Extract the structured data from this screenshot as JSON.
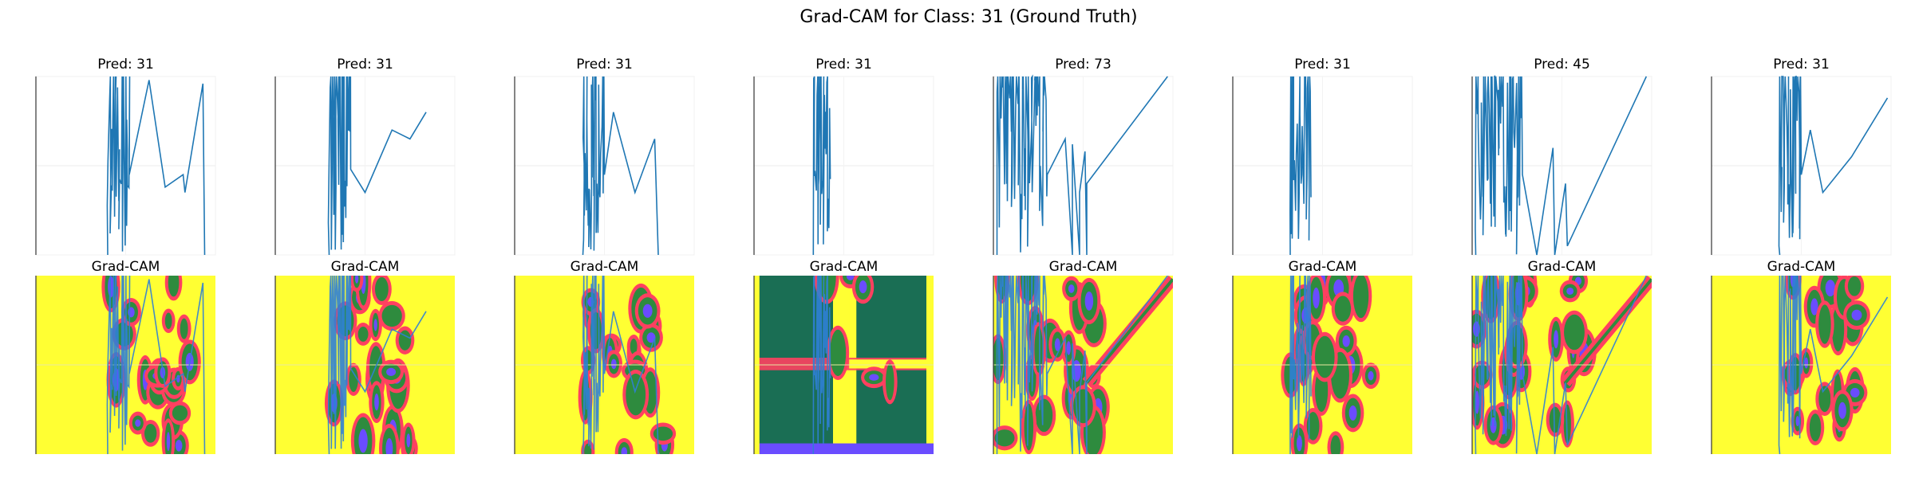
{
  "figure": {
    "title": "Grad-CAM for Class: 31 (Ground Truth)",
    "cam_title": "Grad-CAM"
  },
  "colors": {
    "signal": "#1f77b4",
    "cam_background": "#ffff33",
    "cam_hot": "#ff4060",
    "cam_mid": "#2e8b3e",
    "cam_dark": "#1a6e54",
    "cam_cool": "#6a4cff",
    "cam_signal": "#2f7fd6"
  },
  "chart_data": {
    "type": "grid",
    "rows": [
      "signal",
      "gradcam"
    ],
    "panels": [
      {
        "pred_label": "Pred: 31",
        "pred": 31
      },
      {
        "pred_label": "Pred: 31",
        "pred": 31
      },
      {
        "pred_label": "Pred: 31",
        "pred": 31
      },
      {
        "pred_label": "Pred: 31",
        "pred": 31
      },
      {
        "pred_label": "Pred: 73",
        "pred": 73
      },
      {
        "pred_label": "Pred: 31",
        "pred": 31
      },
      {
        "pred_label": "Pred: 45",
        "pred": 45
      },
      {
        "pred_label": "Pred: 31",
        "pred": 31
      }
    ]
  }
}
